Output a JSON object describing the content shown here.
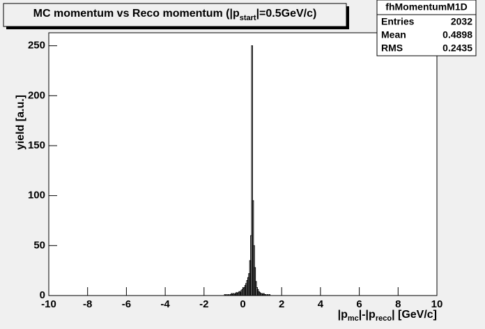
{
  "chart_data": {
    "type": "histogram",
    "title": [
      "MC momentum vs Reco momentum (|p",
      "start",
      "|=0.5GeV/c)"
    ],
    "xlabel": [
      "|p",
      "mc",
      "|-|p",
      "reco",
      "| [GeV/c]"
    ],
    "ylabel": "yield [a.u.]",
    "color": "#000000",
    "bins": [
      -1.0,
      -0.95,
      -0.9,
      -0.85,
      -0.8,
      -0.75,
      -0.7,
      -0.65,
      -0.6,
      -0.55,
      -0.5,
      -0.45,
      -0.4,
      -0.35,
      -0.3,
      -0.25,
      -0.2,
      -0.15,
      -0.1,
      -0.05,
      0.0,
      0.05,
      0.1,
      0.15,
      0.2,
      0.25,
      0.3,
      0.35,
      0.4,
      0.45,
      0.5,
      0.55,
      0.6,
      0.65,
      0.7,
      0.75,
      0.8,
      0.85,
      0.9,
      0.95,
      1.0,
      1.05,
      1.1,
      1.15,
      1.2,
      1.25,
      1.3,
      1.35,
      1.4,
      1.45,
      1.5
    ],
    "counts": [
      0,
      1,
      0,
      1,
      0,
      1,
      0,
      1,
      2,
      1,
      2,
      1,
      2,
      3,
      2,
      3,
      4,
      3,
      5,
      6,
      7,
      8,
      10,
      12,
      15,
      18,
      22,
      35,
      60,
      250,
      95,
      50,
      28,
      14,
      8,
      6,
      4,
      3,
      2,
      2,
      1,
      2,
      1,
      1,
      0,
      1,
      0,
      1,
      0,
      0
    ],
    "xlim": [
      -10,
      10
    ],
    "xticks": [
      -10,
      -8,
      -6,
      -4,
      -2,
      0,
      2,
      4,
      6,
      8,
      10
    ],
    "ylim": [
      0,
      263
    ],
    "yticks": [
      0,
      50,
      100,
      150,
      200,
      250
    ],
    "stats": {
      "name": "fhMomentumM1D",
      "rows": [
        {
          "label": "Entries",
          "value": 2032
        },
        {
          "label": "Mean",
          "value": 0.4898
        },
        {
          "label": "RMS",
          "value": 0.2435
        }
      ]
    }
  }
}
